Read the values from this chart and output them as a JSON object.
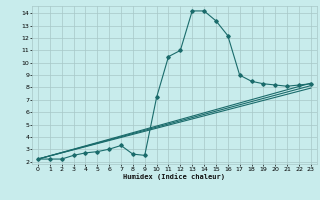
{
  "title": "",
  "xlabel": "Humidex (Indice chaleur)",
  "ylabel": "",
  "bg_color": "#c8ecec",
  "grid_color": "#a8c8c8",
  "line_color": "#1a6b6b",
  "xlim": [
    -0.5,
    23.5
  ],
  "ylim": [
    1.8,
    14.6
  ],
  "xticks": [
    0,
    1,
    2,
    3,
    4,
    5,
    6,
    7,
    8,
    9,
    10,
    11,
    12,
    13,
    14,
    15,
    16,
    17,
    18,
    19,
    20,
    21,
    22,
    23
  ],
  "yticks": [
    2,
    3,
    4,
    5,
    6,
    7,
    8,
    9,
    10,
    11,
    12,
    13,
    14
  ],
  "series": [
    [
      0,
      2.2
    ],
    [
      1,
      2.2
    ],
    [
      2,
      2.2
    ],
    [
      3,
      2.5
    ],
    [
      4,
      2.7
    ],
    [
      5,
      2.8
    ],
    [
      6,
      3.0
    ],
    [
      7,
      3.3
    ],
    [
      8,
      2.6
    ],
    [
      9,
      2.5
    ],
    [
      10,
      7.2
    ],
    [
      11,
      10.5
    ],
    [
      12,
      11.0
    ],
    [
      13,
      14.2
    ],
    [
      14,
      14.2
    ],
    [
      15,
      13.4
    ],
    [
      16,
      12.2
    ],
    [
      17,
      9.0
    ],
    [
      18,
      8.5
    ],
    [
      19,
      8.3
    ],
    [
      20,
      8.2
    ],
    [
      21,
      8.1
    ],
    [
      22,
      8.2
    ],
    [
      23,
      8.3
    ]
  ],
  "line2": [
    [
      0,
      2.2
    ],
    [
      23,
      8.35
    ]
  ],
  "line3": [
    [
      0,
      2.2
    ],
    [
      23,
      8.15
    ]
  ],
  "line4": [
    [
      0,
      2.2
    ],
    [
      23,
      7.95
    ]
  ]
}
